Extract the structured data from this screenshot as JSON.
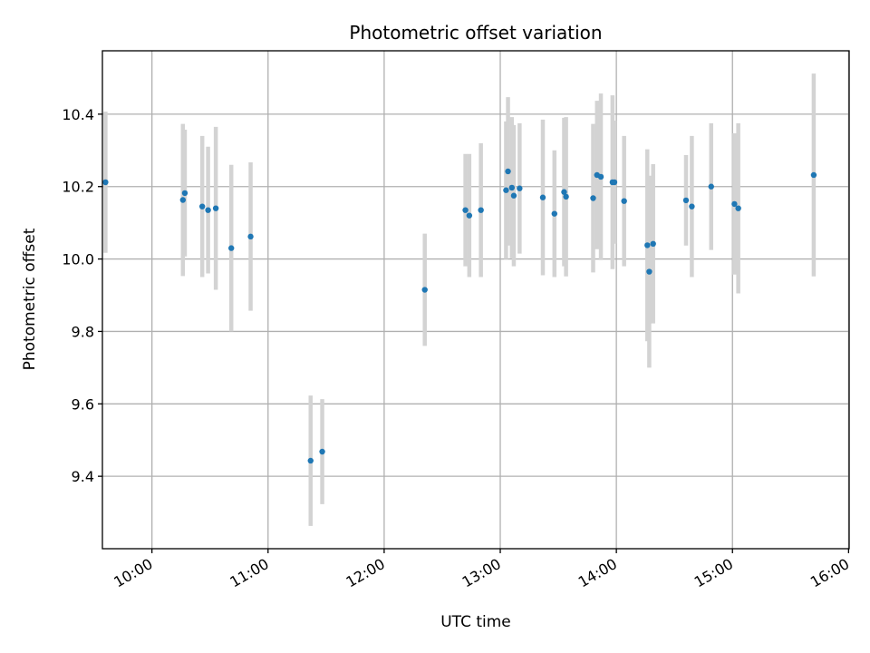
{
  "chart_data": {
    "type": "scatter",
    "title": "Photometric offset variation",
    "xlabel": "UTC time",
    "ylabel": "Photometric offset",
    "xlim": [
      "09:39",
      "16:00"
    ],
    "ylim": [
      9.2,
      10.575
    ],
    "x_ticks": [
      "10:00",
      "11:00",
      "12:00",
      "13:00",
      "14:00",
      "15:00",
      "16:00"
    ],
    "y_ticks": [
      9.4,
      9.6,
      9.8,
      10.0,
      10.2,
      10.4
    ],
    "grid": true,
    "error_bar_color": "#d3d3d3",
    "point_color": "#1f77b4",
    "points": [
      {
        "t": "09:36",
        "y": 10.212,
        "err": 0.195
      },
      {
        "t": "10:16",
        "y": 10.163,
        "err": 0.21
      },
      {
        "t": "10:17",
        "y": 10.182,
        "err": 0.175
      },
      {
        "t": "10:26",
        "y": 10.145,
        "err": 0.195
      },
      {
        "t": "10:29",
        "y": 10.135,
        "err": 0.175
      },
      {
        "t": "10:33",
        "y": 10.14,
        "err": 0.225
      },
      {
        "t": "10:41",
        "y": 10.03,
        "err": 0.23
      },
      {
        "t": "10:51",
        "y": 10.062,
        "err": 0.205
      },
      {
        "t": "11:22",
        "y": 9.443,
        "err": 0.18
      },
      {
        "t": "11:28",
        "y": 9.468,
        "err": 0.145
      },
      {
        "t": "12:21",
        "y": 9.915,
        "err": 0.155
      },
      {
        "t": "12:42",
        "y": 10.135,
        "err": 0.155
      },
      {
        "t": "12:44",
        "y": 10.12,
        "err": 0.17
      },
      {
        "t": "12:50",
        "y": 10.135,
        "err": 0.185
      },
      {
        "t": "13:03",
        "y": 10.19,
        "err": 0.19
      },
      {
        "t": "13:04",
        "y": 10.242,
        "err": 0.205
      },
      {
        "t": "13:06",
        "y": 10.197,
        "err": 0.195
      },
      {
        "t": "13:07",
        "y": 10.175,
        "err": 0.195
      },
      {
        "t": "13:10",
        "y": 10.195,
        "err": 0.18
      },
      {
        "t": "13:22",
        "y": 10.17,
        "err": 0.215
      },
      {
        "t": "13:28",
        "y": 10.125,
        "err": 0.175
      },
      {
        "t": "13:33",
        "y": 10.185,
        "err": 0.205
      },
      {
        "t": "13:34",
        "y": 10.172,
        "err": 0.22
      },
      {
        "t": "13:48",
        "y": 10.168,
        "err": 0.205
      },
      {
        "t": "13:50",
        "y": 10.232,
        "err": 0.205
      },
      {
        "t": "13:52",
        "y": 10.227,
        "err": 0.23
      },
      {
        "t": "13:58",
        "y": 10.212,
        "err": 0.24
      },
      {
        "t": "13:59",
        "y": 10.212,
        "err": 0.17
      },
      {
        "t": "14:04",
        "y": 10.16,
        "err": 0.18
      },
      {
        "t": "14:16",
        "y": 10.038,
        "err": 0.265
      },
      {
        "t": "14:17",
        "y": 9.965,
        "err": 0.265
      },
      {
        "t": "14:19",
        "y": 10.042,
        "err": 0.22
      },
      {
        "t": "14:36",
        "y": 10.162,
        "err": 0.125
      },
      {
        "t": "14:39",
        "y": 10.145,
        "err": 0.195
      },
      {
        "t": "14:49",
        "y": 10.2,
        "err": 0.175
      },
      {
        "t": "15:01",
        "y": 10.152,
        "err": 0.195
      },
      {
        "t": "15:03",
        "y": 10.14,
        "err": 0.235
      },
      {
        "t": "15:42",
        "y": 10.232,
        "err": 0.28
      }
    ]
  }
}
